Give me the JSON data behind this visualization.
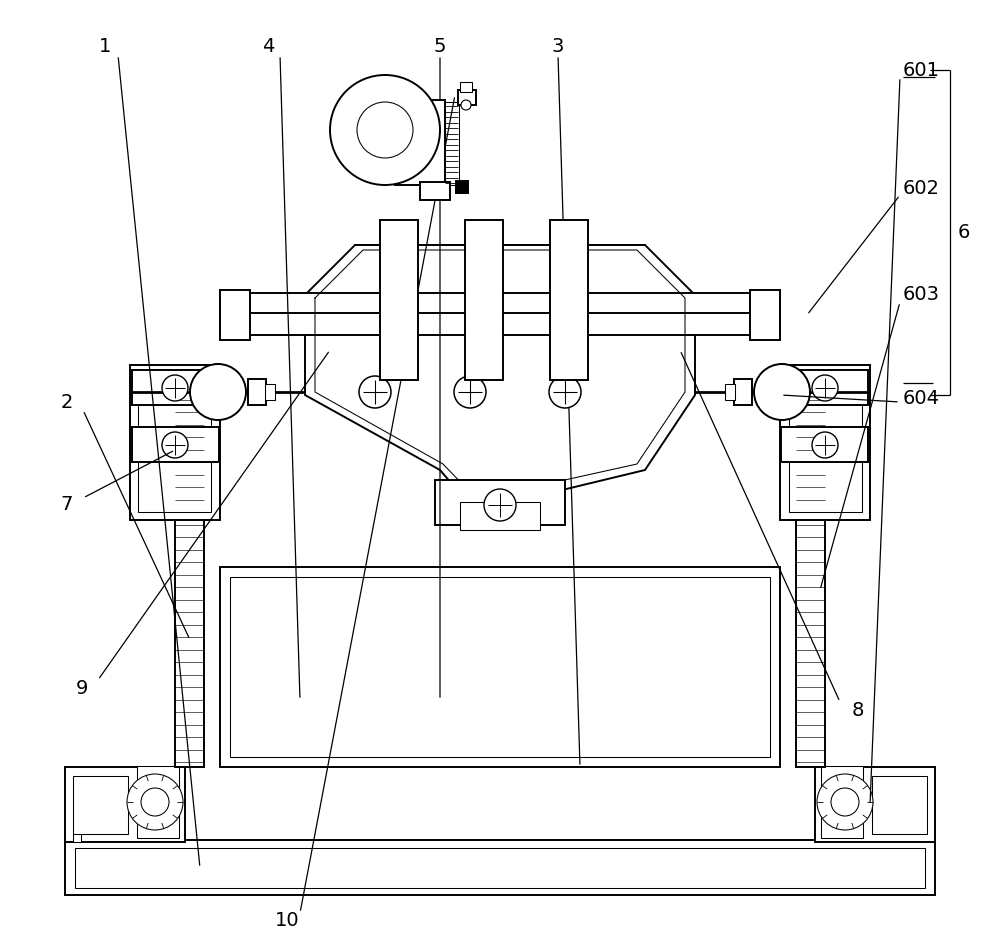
{
  "bg": "#ffffff",
  "lc": "#000000",
  "figsize": [
    10,
    9.5
  ],
  "dpi": 100,
  "lw_main": 1.4,
  "lw_thin": 0.75,
  "lw_thick": 2.0,
  "fs": 14
}
